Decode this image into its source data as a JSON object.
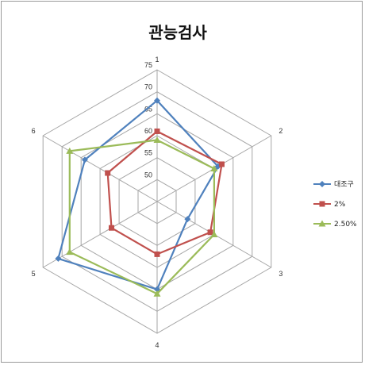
{
  "chart_data": {
    "type": "radar",
    "title": "관능검사",
    "categories": [
      "1",
      "2",
      "3",
      "4",
      "5",
      "6"
    ],
    "ticks": [
      50,
      55,
      60,
      65,
      70,
      75
    ],
    "rlim": [
      45,
      75
    ],
    "grid": true,
    "legend_position": "right",
    "series": [
      {
        "name": "대조구",
        "color": "#4f81bd",
        "marker": "diamond",
        "values": [
          68,
          61,
          53,
          65,
          71,
          64
        ]
      },
      {
        "name": "2%",
        "color": "#c0504d",
        "marker": "square",
        "values": [
          61,
          62,
          59,
          57,
          57,
          58
        ]
      },
      {
        "name": "2.50%",
        "color": "#9bbb59",
        "marker": "triangle",
        "values": [
          59,
          60,
          60,
          66,
          68,
          68
        ]
      }
    ]
  }
}
